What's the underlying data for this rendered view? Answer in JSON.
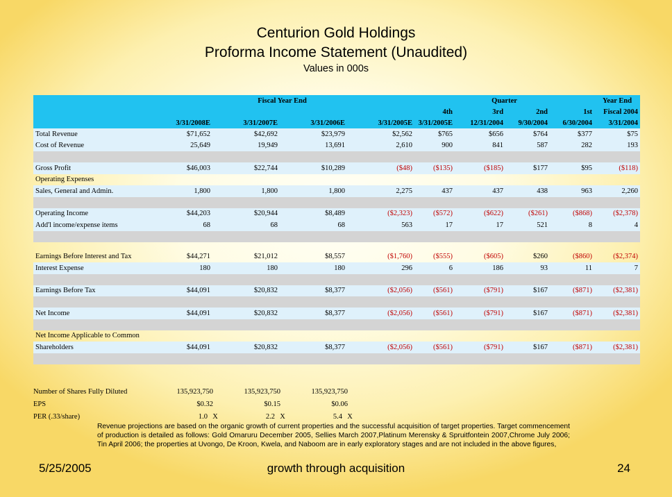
{
  "title": {
    "company": "Centurion Gold Holdings",
    "statement": "Proforma Income Statement (Unaudited)",
    "units": "Values in 000s"
  },
  "table": {
    "group_headers": [
      "Fiscal Year End",
      "Quarter",
      "Year End"
    ],
    "header_row2": [
      "",
      "",
      "",
      "",
      "",
      "4th",
      "3rd",
      "2nd",
      "1st",
      "Fiscal 2004"
    ],
    "columns": [
      "3/31/2008E",
      "3/31/2007E",
      "3/31/2006E",
      "3/31/2005E",
      "3/31/2005E",
      "12/31/2004",
      "9/30/2004",
      "6/30/2004",
      "3/31/2004"
    ],
    "rows": [
      {
        "label": "Total Revenue",
        "values": [
          "$71,652",
          "$42,692",
          "$23,979",
          "$2,562",
          "$765",
          "$656",
          "$764",
          "$377",
          "$75"
        ]
      },
      {
        "label": "Cost of Revenue",
        "values": [
          "25,649",
          "19,949",
          "13,691",
          "2,610",
          "900",
          "841",
          "587",
          "282",
          "193"
        ]
      },
      {
        "label": "Gross Profit",
        "values": [
          "$46,003",
          "$22,744",
          "$10,289",
          "($48)",
          "($135)",
          "($185)",
          "$177",
          "$95",
          "($118)"
        ]
      },
      {
        "label": "Operating Expenses"
      },
      {
        "label": "Sales, General and Admin.",
        "values": [
          "1,800",
          "1,800",
          "1,800",
          "2,275",
          "437",
          "437",
          "438",
          "963",
          "2,260"
        ]
      },
      {
        "label": "Operating Income",
        "values": [
          "$44,203",
          "$20,944",
          "$8,489",
          "($2,323)",
          "($572)",
          "($622)",
          "($261)",
          "($868)",
          "($2,378)"
        ]
      },
      {
        "label": "Add'l income/expense items",
        "values": [
          "68",
          "68",
          "68",
          "563",
          "17",
          "17",
          "521",
          "8",
          "4"
        ]
      },
      {
        "label": "Earnings Before Interest and Tax",
        "values": [
          "$44,271",
          "$21,012",
          "$8,557",
          "($1,760)",
          "($555)",
          "($605)",
          "$260",
          "($860)",
          "($2,374)"
        ]
      },
      {
        "label": "Interest Expense",
        "values": [
          "180",
          "180",
          "180",
          "296",
          "6",
          "186",
          "93",
          "11",
          "7"
        ]
      },
      {
        "label": "Earnings Before Tax",
        "values": [
          "$44,091",
          "$20,832",
          "$8,377",
          "($2,056)",
          "($561)",
          "($791)",
          "$167",
          "($871)",
          "($2,381)"
        ]
      },
      {
        "label": "Net Income",
        "values": [
          "$44,091",
          "$20,832",
          "$8,377",
          "($2,056)",
          "($561)",
          "($791)",
          "$167",
          "($871)",
          "($2,381)"
        ]
      },
      {
        "label": "Net Income Applicable to Common"
      },
      {
        "label": "Shareholders",
        "values": [
          "$44,091",
          "$20,832",
          "$8,377",
          "($2,056)",
          "($561)",
          "($791)",
          "$167",
          "($871)",
          "($2,381)"
        ]
      }
    ]
  },
  "shares": {
    "label": "Number of Shares Fully Diluted",
    "values": [
      "135,923,750",
      "135,923,750",
      "135,923,750"
    ]
  },
  "eps": {
    "label": "EPS",
    "values": [
      "$0.32",
      "$0.15",
      "$0.06"
    ]
  },
  "per": {
    "label": "PER (.33/share)",
    "values": [
      "1.0",
      "2.2",
      "5.4"
    ],
    "suffix": "X"
  },
  "note": "Revenue projections are based on the organic growth of current properties and the successful acquisition of target properties.  Target commencement of production is detailed as follows: Gold Omaruru December 2005, Sellies March 2007,Platinum Merensky & Spruitfontein 2007,Chrome July 2006; Tin April 2006; the properties at Uvongo, De Kroon, Kwela, and Naboom are in early exploratory stages and are not included in the above figures,",
  "footer": {
    "date": "5/25/2005",
    "tagline": "growth through acquisition",
    "page": "24"
  },
  "colors": {
    "header_bg": "#21c2f0",
    "negative": "#c00000",
    "row_tint": "#dff1fb",
    "spacer_gray": "#d4d4d4"
  }
}
